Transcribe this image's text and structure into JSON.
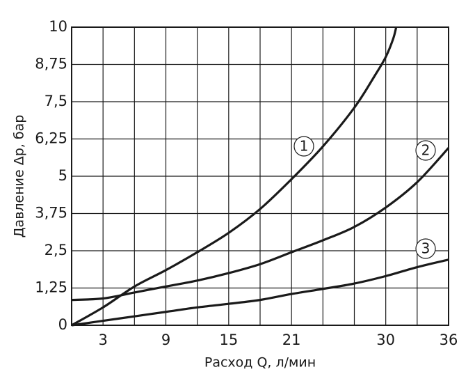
{
  "chart_data": {
    "type": "line",
    "xlabel": "Расход Q, л/мин",
    "ylabel": "Давление Δp, бар",
    "xlim": [
      0,
      36
    ],
    "ylim": [
      0,
      10
    ],
    "xticks": [
      3,
      9,
      15,
      21,
      30,
      36
    ],
    "xgrid": [
      3,
      6,
      9,
      12,
      15,
      18,
      21,
      24,
      27,
      30,
      33
    ],
    "yticks": [
      0,
      {
        "value": 1.25,
        "label": "1,25"
      },
      {
        "value": 2.5,
        "label": "2,5"
      },
      {
        "value": 3.75,
        "label": "3,75"
      },
      5,
      {
        "value": 6.25,
        "label": "6,25"
      },
      {
        "value": 7.5,
        "label": "7,5"
      },
      {
        "value": 8.75,
        "label": "8,75"
      },
      10
    ],
    "grid": true,
    "series": [
      {
        "name": "1",
        "color": "#1a1a1a",
        "x": [
          0,
          3,
          6,
          9,
          12,
          15,
          18,
          21,
          24,
          27,
          29,
          30,
          30.7,
          31
        ],
        "values": [
          0,
          0.6,
          1.3,
          1.85,
          2.45,
          3.1,
          3.9,
          4.9,
          6.0,
          7.3,
          8.4,
          9.0,
          9.6,
          10
        ]
      },
      {
        "name": "2",
        "color": "#1a1a1a",
        "x": [
          0,
          3,
          6,
          9,
          12,
          15,
          18,
          21,
          24,
          27,
          30,
          33,
          36
        ],
        "values": [
          0.85,
          0.9,
          1.1,
          1.3,
          1.5,
          1.75,
          2.05,
          2.45,
          2.85,
          3.3,
          3.95,
          4.8,
          5.95
        ]
      },
      {
        "name": "3",
        "color": "#1a1a1a",
        "x": [
          0,
          3,
          6,
          9,
          12,
          15,
          18,
          21,
          24,
          27,
          30,
          33,
          36
        ],
        "values": [
          0,
          0.15,
          0.3,
          0.45,
          0.6,
          0.72,
          0.85,
          1.05,
          1.22,
          1.4,
          1.65,
          1.95,
          2.2
        ]
      }
    ]
  }
}
